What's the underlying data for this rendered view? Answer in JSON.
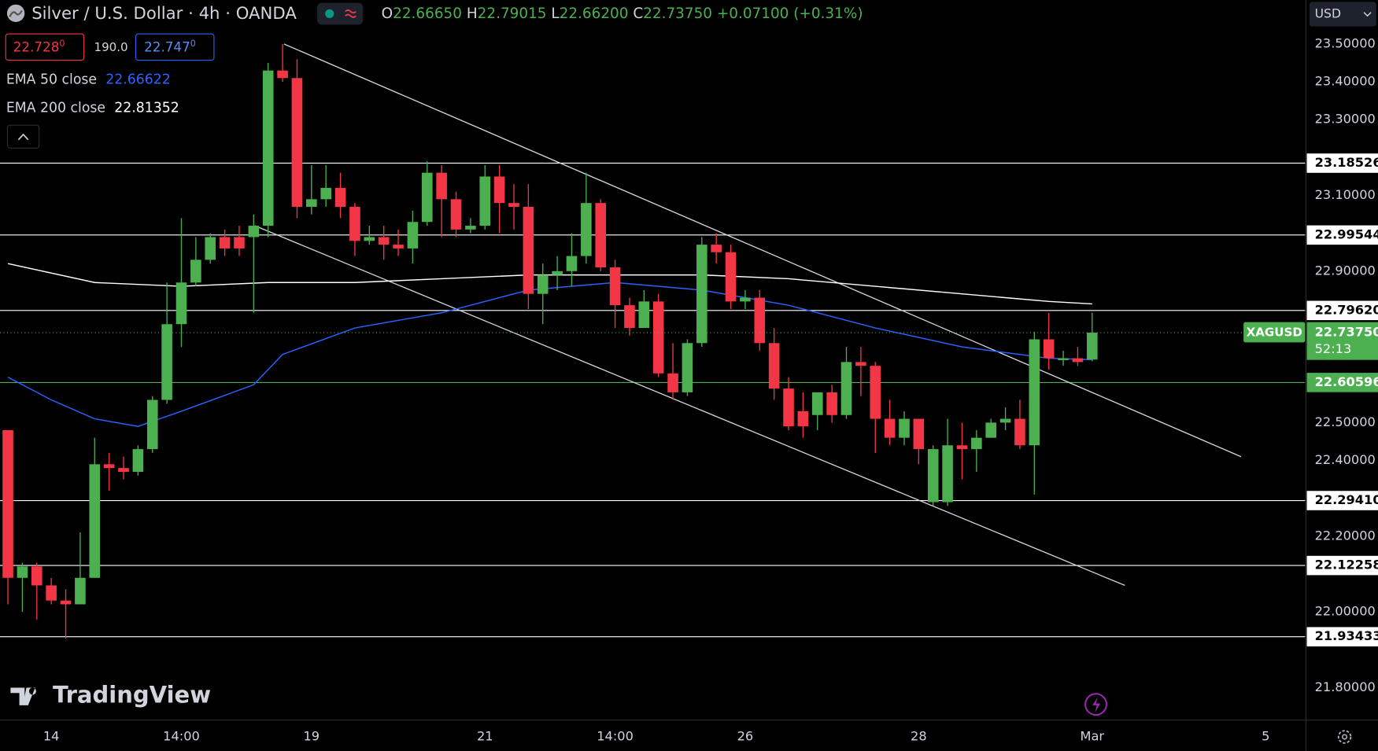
{
  "ui": {
    "symbol_title": "Silver / U.S. Dollar · 4h · OANDA",
    "ohlc": [
      {
        "key": "O",
        "value": "22.66650"
      },
      {
        "key": "H",
        "value": "22.79015"
      },
      {
        "key": "L",
        "value": "22.66200"
      },
      {
        "key": "C",
        "value": "22.73750"
      }
    ],
    "change": "+0.07100 (+0.31%)",
    "bid": {
      "main": "22.728",
      "sup": "0"
    },
    "spread": "190.0",
    "ask": {
      "main": "22.747",
      "sup": "0"
    },
    "indicators": [
      {
        "name": "EMA 50 close",
        "value": "22.66622",
        "color": "#2962ff"
      },
      {
        "name": "EMA 200 close",
        "value": "22.81352",
        "color": "#ffffff"
      }
    ],
    "currency": "USD",
    "logo": "TradingView"
  },
  "chart_data": {
    "type": "candlestick",
    "up_color": "#4caf50",
    "down_color": "#f23645",
    "xlim": [
      -0.547,
      89.726
    ],
    "ylim": [
      21.714,
      23.616
    ],
    "xticks": [
      {
        "value": 3,
        "label": "14"
      },
      {
        "value": 12,
        "label": "14:00"
      },
      {
        "value": 21,
        "label": "19"
      },
      {
        "value": 33,
        "label": "21"
      },
      {
        "value": 42,
        "label": "14:00"
      },
      {
        "value": 51,
        "label": "26"
      },
      {
        "value": 63,
        "label": "28"
      },
      {
        "value": 75,
        "label": "Mar"
      },
      {
        "value": 87,
        "label": "5"
      }
    ],
    "yticks": [
      {
        "value": 23.5,
        "label": "23.50000"
      },
      {
        "value": 23.4,
        "label": "23.40000"
      },
      {
        "value": 23.3,
        "label": "23.30000"
      },
      {
        "value": 23.1,
        "label": "23.10000"
      },
      {
        "value": 22.9,
        "label": "22.90000"
      },
      {
        "value": 22.5,
        "label": "22.50000"
      },
      {
        "value": 22.4,
        "label": "22.40000"
      },
      {
        "value": 22.2,
        "label": "22.20000"
      },
      {
        "value": 22.0,
        "label": "22.00000"
      },
      {
        "value": 21.8,
        "label": "21.80000"
      }
    ],
    "open": [
      22.48,
      22.09,
      22.12,
      22.07,
      22.03,
      22.02,
      22.09,
      22.39,
      22.38,
      22.37,
      22.43,
      22.56,
      22.76,
      22.87,
      22.93,
      22.99,
      22.99,
      22.99,
      23.02,
      23.43,
      23.41,
      23.07,
      23.09,
      23.12,
      23.07,
      22.98,
      22.99,
      22.97,
      22.96,
      23.03,
      23.16,
      23.09,
      23.01,
      23.02,
      23.15,
      23.08,
      23.07,
      22.84,
      22.89,
      22.9,
      22.94,
      23.08,
      22.91,
      22.81,
      22.75,
      22.82,
      22.63,
      22.58,
      22.71,
      22.97,
      22.95,
      22.82,
      22.83,
      22.71,
      22.59,
      22.53,
      22.52,
      22.58,
      22.52,
      22.66,
      22.65,
      22.51,
      22.46,
      22.51,
      22.29,
      22.29,
      22.44,
      22.43,
      22.46,
      22.5,
      22.51,
      22.44,
      22.72,
      22.665,
      22.67,
      22.6665
    ],
    "high": [
      22.48,
      22.13,
      22.13,
      22.09,
      22.06,
      22.21,
      22.46,
      22.42,
      22.41,
      22.44,
      22.57,
      22.87,
      23.04,
      22.99,
      23.0,
      23.01,
      23.02,
      23.05,
      23.45,
      23.5,
      23.46,
      23.18,
      23.18,
      23.16,
      23.08,
      23.02,
      23.02,
      23.01,
      23.06,
      23.19,
      23.18,
      23.11,
      23.04,
      23.18,
      23.18,
      23.13,
      23.13,
      22.92,
      22.94,
      23.0,
      23.16,
      23.09,
      22.93,
      22.83,
      22.85,
      22.84,
      22.71,
      22.72,
      22.99,
      23.0,
      22.97,
      22.85,
      22.85,
      22.75,
      22.62,
      22.58,
      22.58,
      22.6,
      22.7,
      22.7,
      22.66,
      22.56,
      22.53,
      22.51,
      22.44,
      22.51,
      22.5,
      22.48,
      22.51,
      22.54,
      22.56,
      22.74,
      22.79,
      22.69,
      22.7,
      22.79015
    ],
    "low": [
      22.02,
      22.0,
      21.98,
      22.02,
      21.93,
      22.02,
      22.09,
      22.32,
      22.35,
      22.36,
      22.42,
      22.55,
      22.7,
      22.86,
      22.92,
      22.94,
      22.94,
      22.79,
      22.99,
      23.4,
      23.04,
      23.05,
      23.07,
      23.04,
      22.94,
      22.97,
      22.93,
      22.94,
      22.92,
      23.02,
      22.99,
      22.99,
      23.0,
      23.01,
      23.0,
      23.01,
      22.8,
      22.76,
      22.85,
      22.86,
      22.92,
      22.9,
      22.75,
      22.73,
      22.75,
      22.62,
      22.56,
      22.57,
      22.7,
      22.92,
      22.8,
      22.8,
      22.69,
      22.56,
      22.48,
      22.46,
      22.48,
      22.5,
      22.51,
      22.57,
      22.42,
      22.44,
      22.44,
      22.39,
      22.28,
      22.28,
      22.35,
      22.37,
      22.46,
      22.48,
      22.43,
      22.31,
      22.64,
      22.65,
      22.65,
      22.662
    ],
    "close": [
      22.09,
      22.12,
      22.07,
      22.03,
      22.02,
      22.09,
      22.39,
      22.38,
      22.37,
      22.43,
      22.56,
      22.76,
      22.87,
      22.93,
      22.99,
      22.96,
      22.96,
      23.02,
      23.43,
      23.41,
      23.07,
      23.09,
      23.12,
      23.07,
      22.98,
      22.99,
      22.97,
      22.96,
      23.03,
      23.16,
      23.09,
      23.01,
      23.02,
      23.15,
      23.08,
      23.07,
      22.84,
      22.89,
      22.9,
      22.94,
      23.08,
      22.91,
      22.81,
      22.75,
      22.82,
      22.63,
      22.58,
      22.71,
      22.97,
      22.95,
      22.82,
      22.83,
      22.71,
      22.59,
      22.49,
      22.49,
      22.58,
      22.52,
      22.66,
      22.65,
      22.51,
      22.46,
      22.51,
      22.43,
      22.43,
      22.44,
      22.43,
      22.46,
      22.5,
      22.51,
      22.44,
      22.72,
      22.67,
      22.67,
      22.66,
      22.7375
    ],
    "ema": [
      {
        "color": "#ffffff",
        "x": [
          0,
          6,
          12,
          18,
          24,
          30,
          36,
          42,
          48,
          54,
          60,
          66,
          72,
          75
        ],
        "values": [
          22.92,
          22.87,
          22.86,
          22.87,
          22.87,
          22.88,
          22.89,
          22.89,
          22.89,
          22.88,
          22.86,
          22.84,
          22.82,
          22.81352
        ]
      },
      {
        "color": "#2962ff",
        "x": [
          0,
          3,
          6,
          9,
          12,
          17,
          19,
          24,
          30,
          36,
          42,
          48,
          54,
          60,
          66,
          72,
          75
        ],
        "values": [
          22.62,
          22.56,
          22.51,
          22.49,
          22.53,
          22.6,
          22.68,
          22.75,
          22.79,
          22.85,
          22.87,
          22.85,
          22.81,
          22.75,
          22.7,
          22.67,
          22.66622
        ]
      }
    ],
    "trendlines": [
      {
        "color": "#d1d4dc",
        "points": [
          [
            19.1,
            23.5
          ],
          [
            85.3,
            22.41
          ]
        ]
      },
      {
        "color": "#d1d4dc",
        "points": [
          [
            17.08,
            23.02
          ],
          [
            77.26,
            22.07
          ]
        ]
      }
    ],
    "levels": [
      {
        "value": 23.18526,
        "label": "23.18526",
        "color": "#ffffff"
      },
      {
        "value": 22.99544,
        "label": "22.99544",
        "color": "#ffffff"
      },
      {
        "value": 22.7962,
        "label": "22.79620",
        "color": "#ffffff"
      },
      {
        "value": 22.60596,
        "label": "22.60596",
        "color": "#4caf50"
      },
      {
        "value": 22.2941,
        "label": "22.29410",
        "color": "#ffffff"
      },
      {
        "value": 22.12258,
        "label": "22.12258",
        "color": "#ffffff"
      },
      {
        "value": 21.93433,
        "label": "21.93433",
        "color": "#ffffff"
      }
    ],
    "last": {
      "value": 22.7375,
      "label": "22.73750",
      "symbol": "XAGUSD",
      "countdown": "52:13",
      "color": "#4caf50"
    }
  }
}
